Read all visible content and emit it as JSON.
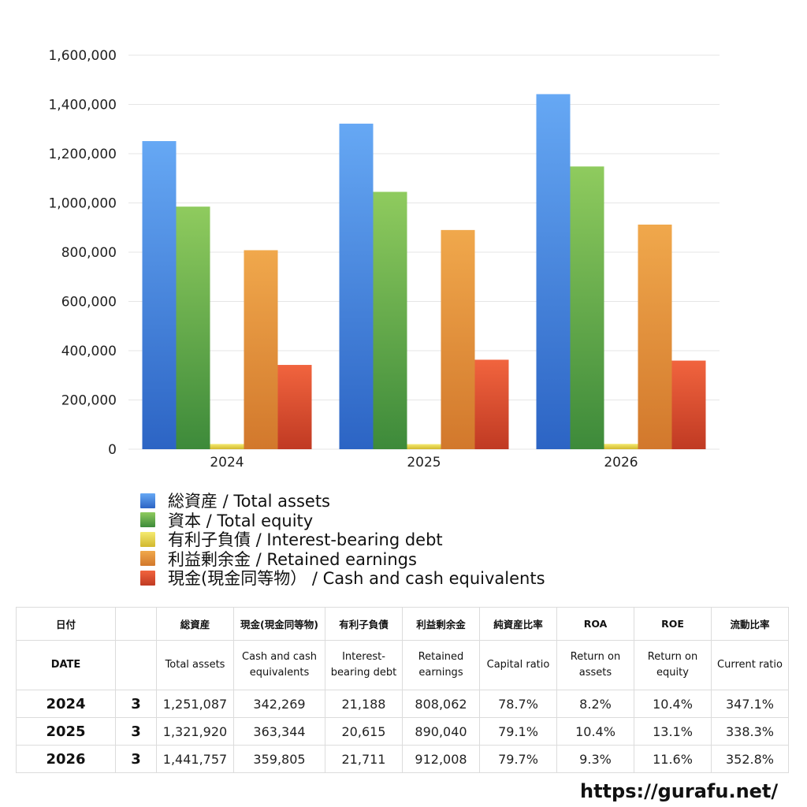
{
  "chart_data": {
    "type": "bar",
    "categories": [
      "2024",
      "2025",
      "2026"
    ],
    "series": [
      {
        "name": "総資産 / Total assets",
        "values": [
          1251087,
          1321920,
          1441757
        ],
        "color_top": "#66a8f4",
        "color_bottom": "#2c64c4"
      },
      {
        "name": "資本 / Total equity",
        "values": [
          985000,
          1045000,
          1148000
        ],
        "color_top": "#8fcb5e",
        "color_bottom": "#3d8a3a"
      },
      {
        "name": "有利子負債 / Interest-bearing debt",
        "values": [
          21188,
          20615,
          21711
        ],
        "color_top": "#f4ea70",
        "color_bottom": "#d2b82e"
      },
      {
        "name": "利益剰余金 / Retained earnings",
        "values": [
          808062,
          890040,
          912008
        ],
        "color_top": "#f0a84c",
        "color_bottom": "#d2782c"
      },
      {
        "name": "現金(現金同等物） /  Cash and cash equivalents",
        "values": [
          342269,
          363344,
          359805
        ],
        "color_top": "#f1643e",
        "color_bottom": "#c03a23"
      }
    ],
    "ylim": [
      0,
      1600000
    ],
    "yticks": [
      0,
      200000,
      400000,
      600000,
      800000,
      1000000,
      1200000,
      1400000,
      1600000
    ],
    "ytick_labels": [
      "0",
      "200,000",
      "400,000",
      "600,000",
      "800,000",
      "1,000,000",
      "1,200,000",
      "1,400,000",
      "1,600,000"
    ],
    "grid": true,
    "legend_position": "bottom-left"
  },
  "table": {
    "header_ja": [
      "日付",
      "",
      "総資産",
      "現金(現金同等物)",
      "有利子負債",
      "利益剰余金",
      "純資産比率",
      "ROA",
      "ROE",
      "流動比率"
    ],
    "header_en": [
      "DATE",
      "",
      "Total assets",
      "Cash and cash equivalents",
      "Interest-bearing debt",
      "Retained earnings",
      "Capital ratio",
      "Return on assets",
      "Return on equity",
      "Current ratio"
    ],
    "rows": [
      [
        "2024",
        "3",
        "1,251,087",
        "342,269",
        "21,188",
        "808,062",
        "78.7%",
        "8.2%",
        "10.4%",
        "347.1%"
      ],
      [
        "2025",
        "3",
        "1,321,920",
        "363,344",
        "20,615",
        "890,040",
        "79.1%",
        "10.4%",
        "13.1%",
        "338.3%"
      ],
      [
        "2026",
        "3",
        "1,441,757",
        "359,805",
        "21,711",
        "912,008",
        "79.7%",
        "9.3%",
        "11.6%",
        "352.8%"
      ]
    ]
  },
  "footer": {
    "url": "https://gurafu.net/"
  }
}
